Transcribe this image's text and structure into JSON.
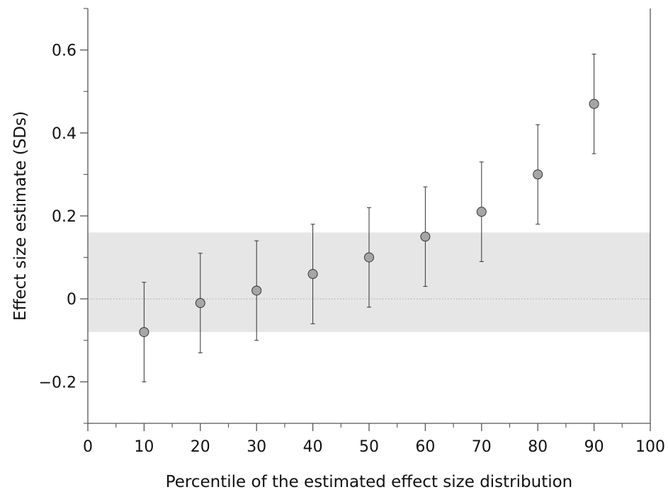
{
  "chart_data": {
    "type": "scatter",
    "xlabel": "Percentile of the estimated effect size distribution",
    "ylabel": "Effect size estimate (SDs)",
    "xlim": [
      0,
      100
    ],
    "ylim": [
      -0.3,
      0.7
    ],
    "x_ticks": [
      0,
      10,
      20,
      30,
      40,
      50,
      60,
      70,
      80,
      90,
      100
    ],
    "x_tick_labels": [
      "0",
      "10",
      "20",
      "30",
      "40",
      "50",
      "60",
      "70",
      "80",
      "90",
      "100"
    ],
    "x_minor_ticks": [
      5,
      15,
      25,
      35,
      45,
      55,
      65,
      75,
      85,
      95
    ],
    "y_ticks": [
      -0.2,
      0,
      0.2,
      0.4,
      0.6
    ],
    "y_tick_labels": [
      "−0.2",
      "0",
      "0.2",
      "0.4",
      "0.6"
    ],
    "y_minor_ticks": [
      -0.3,
      -0.1,
      0.1,
      0.3,
      0.5,
      0.7
    ],
    "shaded_band": {
      "y_low": -0.08,
      "y_high": 0.16,
      "color": "#e6e6e6"
    },
    "reference_line": {
      "y": 0,
      "style": "dotted",
      "color": "#aaaaaa"
    },
    "marker_color": "#a6a6a6",
    "grid": false,
    "series": [
      {
        "x": [
          10,
          20,
          30,
          40,
          50,
          60,
          70,
          80,
          90
        ],
        "y": [
          -0.08,
          -0.01,
          0.02,
          0.06,
          0.1,
          0.15,
          0.21,
          0.3,
          0.47
        ],
        "y_lower": [
          -0.2,
          -0.13,
          -0.1,
          -0.06,
          -0.02,
          0.03,
          0.09,
          0.18,
          0.35
        ],
        "y_upper": [
          0.04,
          0.11,
          0.14,
          0.18,
          0.22,
          0.27,
          0.33,
          0.42,
          0.59
        ]
      }
    ]
  }
}
